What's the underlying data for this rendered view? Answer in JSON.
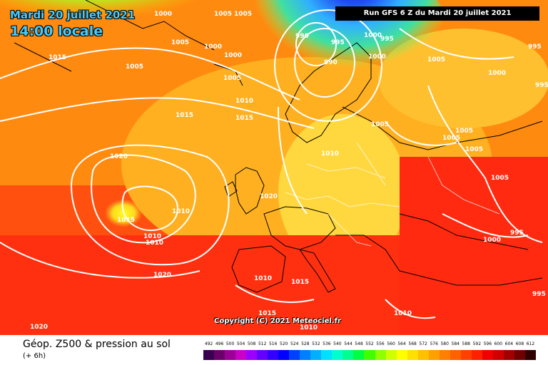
{
  "header": {
    "date": "Mardi 20 juillet 2021",
    "local_time": "14:00 locale",
    "run": "Run GFS 6 Z du Mardi 20 juillet 2021"
  },
  "copyright": "Copyright (C) 2021 Meteociel.fr",
  "footer": {
    "product": "Géop. Z500 & pression au sol",
    "step": "(+ 6h)"
  },
  "isobar_labels": [
    "1000",
    "1005",
    "1000",
    "1005",
    "1015",
    "1005",
    "1005",
    "1000",
    "1005",
    "1010",
    "1015",
    "1015",
    "990",
    "995",
    "990",
    "1000",
    "995",
    "1000",
    "1005",
    "995",
    "1005",
    "1000",
    "995",
    "1005",
    "1005",
    "1005",
    "1005",
    "1010",
    "1020",
    "1020",
    "1010",
    "1015",
    "1010",
    "1010",
    "1020",
    "1010",
    "1015",
    "1015",
    "1010",
    "1010",
    "1000",
    "995",
    "995",
    "1020"
  ],
  "legend": {
    "unit_values": [
      "492",
      "496",
      "500",
      "504",
      "508",
      "512",
      "516",
      "520",
      "524",
      "528",
      "532",
      "536",
      "540",
      "544",
      "548",
      "552",
      "556",
      "560",
      "564",
      "568",
      "572",
      "576",
      "580",
      "584",
      "588",
      "592",
      "596",
      "600",
      "604",
      "608",
      "612"
    ],
    "colors": [
      "#3a0050",
      "#6a006a",
      "#9a0096",
      "#c800c8",
      "#9a00ff",
      "#6400ff",
      "#3200ff",
      "#0000ff",
      "#0040ff",
      "#0080ff",
      "#00b0ff",
      "#00e0ff",
      "#00ffd0",
      "#00ff90",
      "#00ff40",
      "#40ff00",
      "#90ff00",
      "#d0ff00",
      "#ffff00",
      "#ffe000",
      "#ffc000",
      "#ffa000",
      "#ff8000",
      "#ff6000",
      "#ff4000",
      "#ff2000",
      "#f00000",
      "#d00000",
      "#a00000",
      "#700000",
      "#300000"
    ]
  }
}
